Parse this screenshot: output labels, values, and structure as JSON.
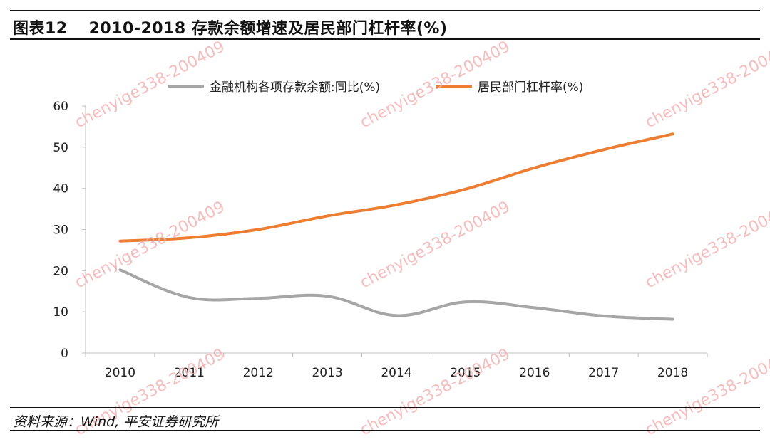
{
  "header": {
    "figure_number": "图表12",
    "title": "2010-2018 存款余额增速及居民部门杠杆率(%)"
  },
  "watermark_text": "chenyige338-200409",
  "source": "资料来源：Wind, 平安证券研究所",
  "colors": {
    "series_gray": "#a6a6a6",
    "series_orange": "#ed7d31",
    "axis": "#bfbfbf",
    "watermark": "#f4b6b6"
  },
  "chart_data": {
    "type": "line",
    "title": "",
    "xlabel": "",
    "ylabel": "",
    "categories": [
      "2010",
      "2011",
      "2012",
      "2013",
      "2014",
      "2015",
      "2016",
      "2017",
      "2018"
    ],
    "ylim": [
      0,
      60
    ],
    "yticks": [
      0,
      10,
      20,
      30,
      40,
      50,
      60
    ],
    "grid": false,
    "legend_position": "top-center",
    "series": [
      {
        "name": "金融机构各项存款余额:同比(%)",
        "color": "#a6a6a6",
        "values": [
          20.2,
          13.5,
          13.3,
          13.8,
          9.1,
          12.4,
          11.0,
          9.0,
          8.2
        ]
      },
      {
        "name": "居民部门杠杆率(%)",
        "color": "#ed7d31",
        "values": [
          27.2,
          28.0,
          30.0,
          33.3,
          36.0,
          39.8,
          45.0,
          49.4,
          53.2
        ]
      }
    ]
  }
}
